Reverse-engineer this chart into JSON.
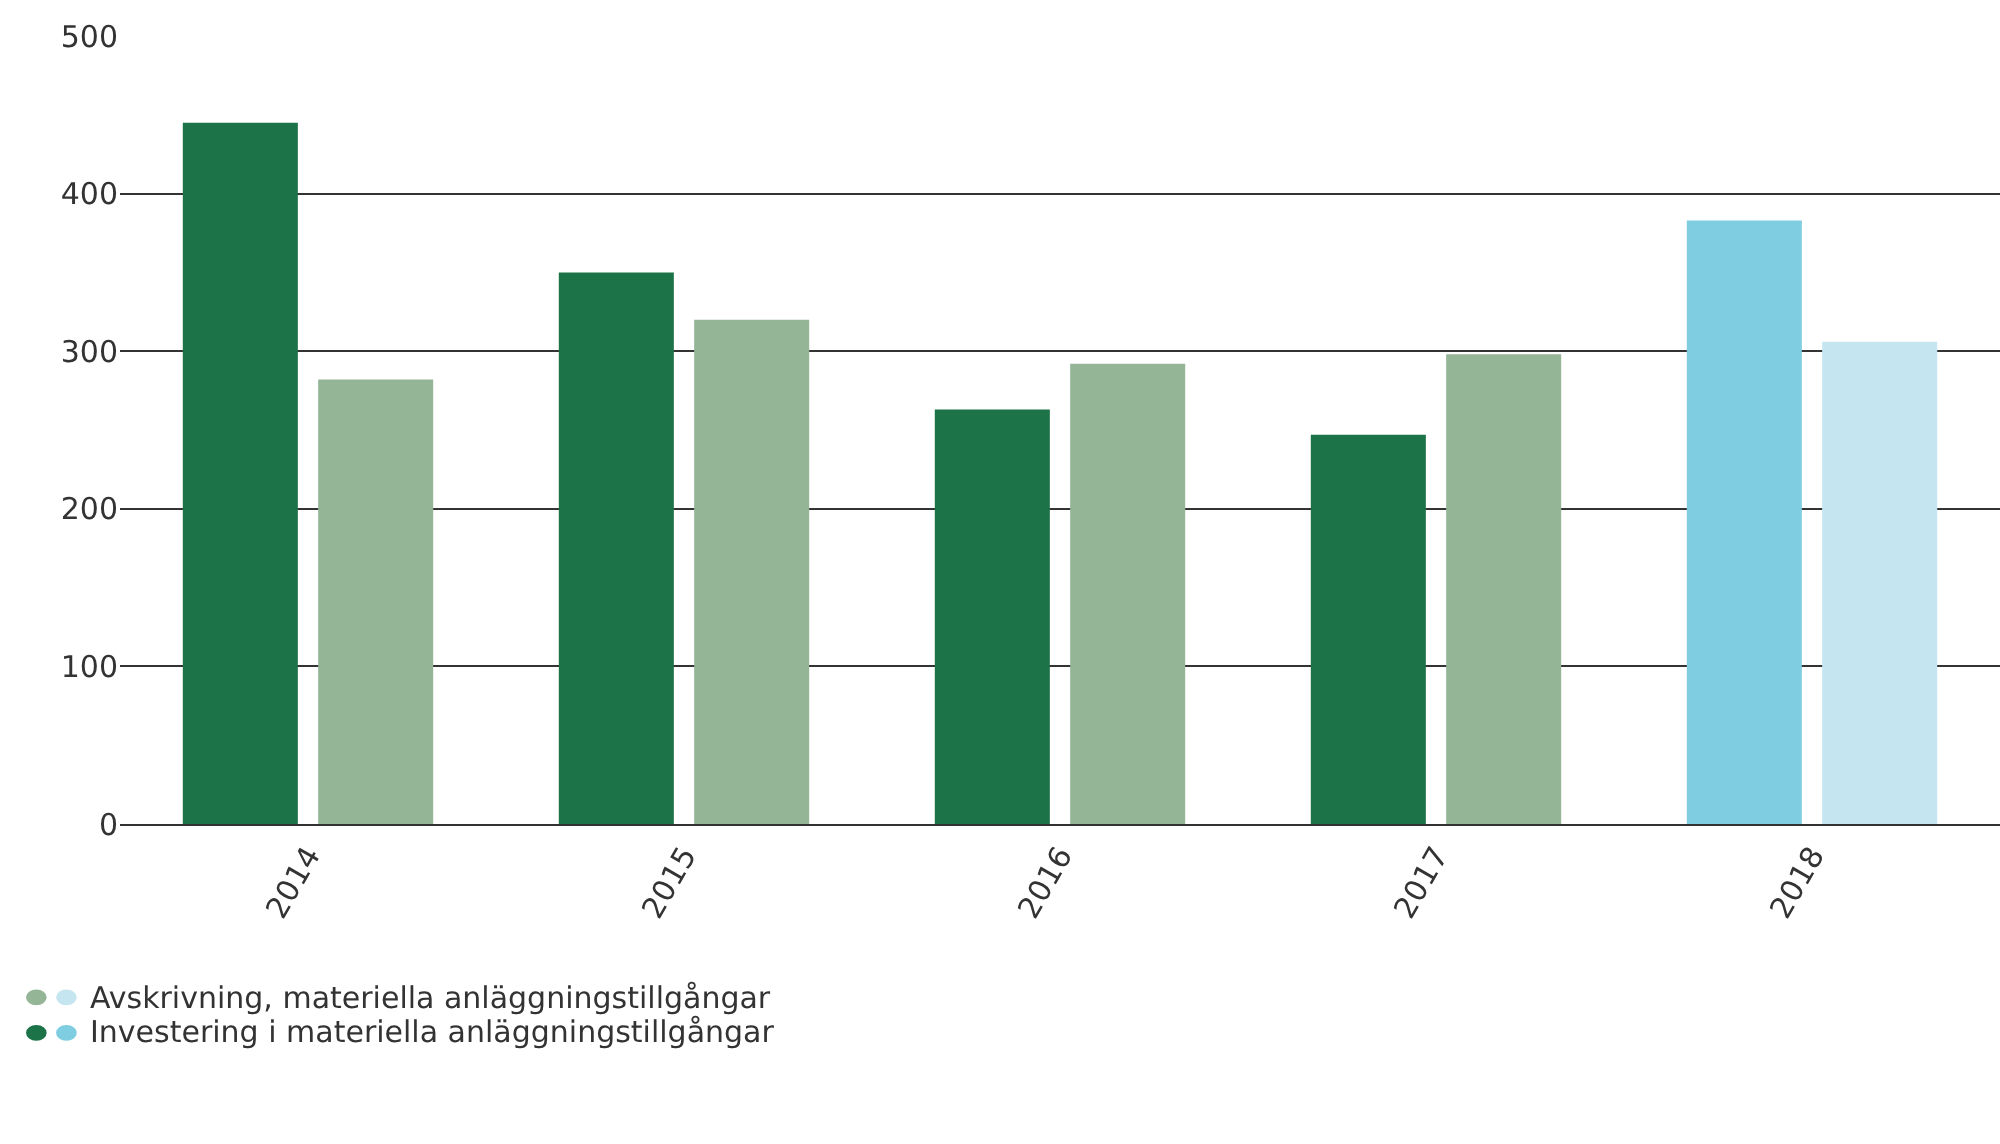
{
  "chart_data": {
    "type": "bar",
    "categories": [
      "2014",
      "2015",
      "2016",
      "2017",
      "2018"
    ],
    "series": [
      {
        "name": "Investering i materiella anläggningstillgångar",
        "colors": [
          "#1c7347",
          "#1c7347",
          "#1c7347",
          "#1c7347",
          "#7ecde1"
        ],
        "values": [
          445,
          350,
          263,
          247,
          383
        ]
      },
      {
        "name": "Avskrivning, materiella anläggningstillgångar",
        "colors": [
          "#94b596",
          "#94b596",
          "#94b596",
          "#94b596",
          "#c5e6f0"
        ],
        "values": [
          282,
          320,
          292,
          298,
          306
        ]
      }
    ],
    "ylim": [
      0,
      500
    ],
    "yticks": [
      0,
      100,
      200,
      300,
      400,
      500
    ],
    "grid": "y",
    "legend": "bottom left"
  }
}
